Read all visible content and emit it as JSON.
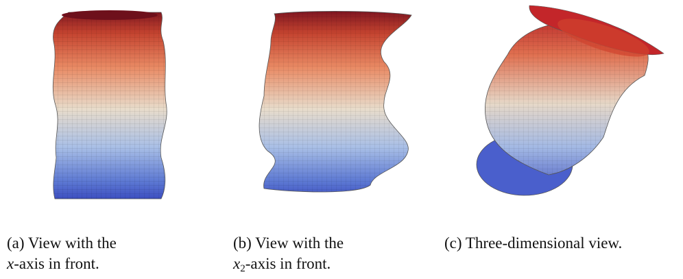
{
  "subfigures": [
    {
      "label": "(a)",
      "text": "View with the",
      "math": "x",
      "rest": "-axis in front."
    },
    {
      "label": "(b)",
      "text": "View with the",
      "math": "x",
      "subscript": "2",
      "rest": "-axis in front."
    },
    {
      "label": "(c)",
      "text": "Three-dimensional view."
    }
  ]
}
